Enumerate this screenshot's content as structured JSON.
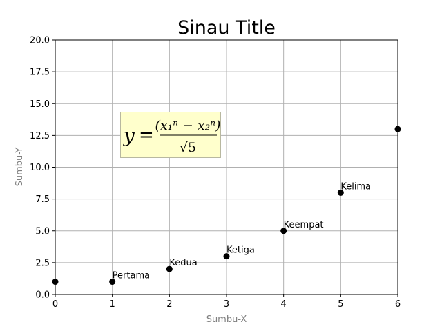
{
  "chart_data": {
    "type": "scatter",
    "title": "Sinau Title",
    "xlabel": "Sumbu-X",
    "ylabel": "Sumbu-Y",
    "xlim": [
      0,
      6
    ],
    "ylim": [
      0,
      20
    ],
    "xticks": [
      "0",
      "1",
      "2",
      "3",
      "4",
      "5",
      "6"
    ],
    "yticks": [
      "0.0",
      "2.5",
      "5.0",
      "7.5",
      "10.0",
      "12.5",
      "15.0",
      "17.5",
      "20.0"
    ],
    "grid": true,
    "marker_color": "#000000",
    "axis_label_color": "#808080",
    "points": [
      {
        "x": 0,
        "y": 1,
        "label": ""
      },
      {
        "x": 1,
        "y": 1,
        "label": "Pertama"
      },
      {
        "x": 2,
        "y": 2,
        "label": "Kedua"
      },
      {
        "x": 3,
        "y": 3,
        "label": "Ketiga"
      },
      {
        "x": 4,
        "y": 5,
        "label": "Keempat"
      },
      {
        "x": 5,
        "y": 8,
        "label": "Kelima"
      },
      {
        "x": 6,
        "y": 13,
        "label": ""
      }
    ],
    "formula": {
      "lhs": "y",
      "equals": "=",
      "numerator": "(x₁ⁿ − x₂ⁿ)",
      "denominator": "√5",
      "box_color": "#ffffcc"
    }
  }
}
